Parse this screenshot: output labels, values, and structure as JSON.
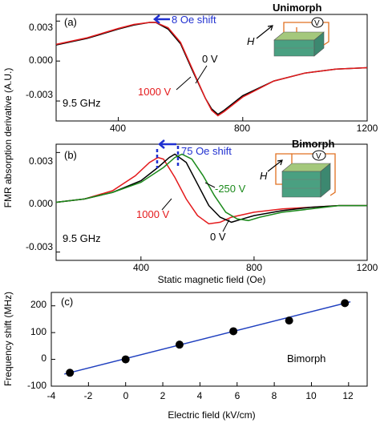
{
  "chart_data": [
    {
      "type": "line",
      "panel_label": "(a)",
      "xlim": [
        200,
        1200
      ],
      "ylim": [
        -0.0045,
        0.0035
      ],
      "x_ticks": [
        "400",
        "800",
        "1200"
      ],
      "y_ticks": [
        "0.003",
        "0.000",
        "-0.003"
      ],
      "annotations": {
        "shift": "8 Oe shift",
        "freq": "9.5 GHz",
        "label_0v": "0 V",
        "label_1000v": "1000 V",
        "device": "Unimorph",
        "field_symbol": "H",
        "voltage_symbol": "V"
      },
      "series": [
        {
          "name": "0 V",
          "color": "#000000",
          "x": [
            200,
            300,
            400,
            450,
            500,
            520,
            560,
            600,
            640,
            680,
            700,
            720,
            740,
            800,
            900,
            1000,
            1100,
            1200
          ],
          "y": [
            0.0012,
            0.0017,
            0.0024,
            0.0027,
            0.0029,
            0.0029,
            0.0024,
            0.0013,
            -0.0008,
            -0.0028,
            -0.0036,
            -0.004,
            -0.0037,
            -0.0026,
            -0.0015,
            -0.0009,
            -0.0006,
            -0.0005
          ]
        },
        {
          "name": "1000 V",
          "color": "#e41a1c",
          "x": [
            200,
            300,
            400,
            450,
            500,
            520,
            560,
            600,
            640,
            680,
            700,
            720,
            740,
            800,
            900,
            1000,
            1100,
            1200
          ],
          "y": [
            0.00125,
            0.00175,
            0.00245,
            0.00275,
            0.0029,
            0.0029,
            0.0025,
            0.0014,
            -0.0007,
            -0.0028,
            -0.0037,
            -0.0041,
            -0.0038,
            -0.0027,
            -0.0015,
            -0.0009,
            -0.0006,
            -0.0005
          ]
        }
      ]
    },
    {
      "type": "line",
      "panel_label": "(b)",
      "xlim": [
        100,
        1200
      ],
      "ylim": [
        -0.0035,
        0.0035
      ],
      "x_ticks": [
        "400",
        "800",
        "1200"
      ],
      "y_ticks": [
        "0.003",
        "0.000",
        "-0.003"
      ],
      "xlabel": "Static magnetic field (Oe)",
      "shared_ylabel": "FMR absorption derivative (A.U.)",
      "annotations": {
        "shift": "75 Oe shift",
        "freq": "9.5 GHz",
        "label_0v": "0 V",
        "label_1000v": "1000 V",
        "label_m250v": "-250 V",
        "device": "Bimorph",
        "field_symbol": "H",
        "voltage_symbol": "V"
      },
      "series": [
        {
          "name": "1000 V",
          "color": "#e41a1c",
          "x": [
            100,
            200,
            300,
            380,
            430,
            460,
            480,
            520,
            560,
            600,
            640,
            680,
            720,
            800,
            900,
            1000,
            1100,
            1200
          ],
          "y": [
            0.0,
            0.0002,
            0.0007,
            0.0016,
            0.0024,
            0.0027,
            0.0026,
            0.0015,
            0.0002,
            -0.0008,
            -0.0013,
            -0.0012,
            -0.0009,
            -0.0006,
            -0.0004,
            -0.0003,
            -0.0002,
            -0.0002
          ]
        },
        {
          "name": "0 V",
          "color": "#000000",
          "x": [
            100,
            200,
            300,
            400,
            460,
            500,
            520,
            560,
            600,
            640,
            680,
            720,
            760,
            800,
            900,
            1000,
            1100,
            1200
          ],
          "y": [
            0.0,
            0.0002,
            0.0006,
            0.0013,
            0.0021,
            0.0027,
            0.0029,
            0.0024,
            0.0011,
            -0.0002,
            -0.0009,
            -0.0012,
            -0.001,
            -0.0008,
            -0.0005,
            -0.0003,
            -0.0002,
            -0.0002
          ]
        },
        {
          "name": "-250 V",
          "color": "#1b8a1b",
          "x": [
            100,
            200,
            300,
            400,
            480,
            520,
            545,
            580,
            620,
            660,
            700,
            740,
            780,
            820,
            900,
            1000,
            1100,
            1200
          ],
          "y": [
            0.0,
            0.0002,
            0.0006,
            0.0012,
            0.0021,
            0.0027,
            0.0029,
            0.0026,
            0.0016,
            0.0004,
            -0.0006,
            -0.001,
            -0.0011,
            -0.0009,
            -0.0006,
            -0.0004,
            -0.0002,
            -0.0002
          ]
        }
      ]
    },
    {
      "type": "scatter",
      "panel_label": "(c)",
      "xlim": [
        -4,
        13
      ],
      "ylim": [
        -100,
        250
      ],
      "x_ticks": [
        "-4",
        "-2",
        "0",
        "2",
        "4",
        "6",
        "8",
        "10",
        "12"
      ],
      "y_ticks": [
        "200",
        "100",
        "0",
        "-100"
      ],
      "xlabel": "Electric field (kV/cm)",
      "ylabel": "Frequency shift (MHz)",
      "annotations": {
        "device": "Bimorph"
      },
      "points": {
        "color": "#000000",
        "x": [
          -3.0,
          0.0,
          2.9,
          5.8,
          8.8,
          11.8
        ],
        "y": [
          -50,
          0,
          55,
          105,
          145,
          210
        ]
      },
      "fit_line": {
        "color": "#1f3fbf",
        "x": [
          -3.3,
          12.1
        ],
        "y": [
          -55,
          215
        ]
      }
    }
  ]
}
